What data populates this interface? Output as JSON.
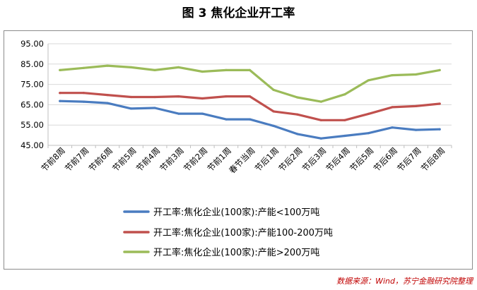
{
  "header": {
    "title": "图 3  焦化企业开工率"
  },
  "footer": {
    "source": "数据来源：Wind，苏宁金融研究院整理"
  },
  "chart_data": {
    "type": "line",
    "title": "图 3  焦化企业开工率",
    "categories": [
      "节前8周",
      "节前7周",
      "节前6周",
      "节前5周",
      "节前4周",
      "节前3周",
      "节前2周",
      "节前1周",
      "春节当周",
      "节后1周",
      "节后2周",
      "节后3周",
      "节后4周",
      "节后5周",
      "节后6周",
      "节后7周",
      "节后8周"
    ],
    "ylim": [
      45,
      95
    ],
    "yticks": [
      "45.00",
      "55.00",
      "65.00",
      "75.00",
      "85.00",
      "95.00"
    ],
    "grid": true,
    "legend_position": "bottom",
    "series": [
      {
        "name": "开工率:焦化企业(100家):产能<100万吨",
        "color": "#4a7cc0",
        "values": [
          66.8,
          66.5,
          65.8,
          63.1,
          63.4,
          60.6,
          60.6,
          57.8,
          57.8,
          54.6,
          50.6,
          48.4,
          49.7,
          51.0,
          53.8,
          52.6,
          52.9
        ]
      },
      {
        "name": "开工率:焦化企业(100家):产能100-200万吨",
        "color": "#c0504d",
        "values": [
          70.8,
          70.8,
          69.8,
          68.8,
          68.8,
          69.1,
          68.1,
          69.1,
          69.1,
          61.7,
          60.2,
          57.4,
          57.4,
          60.5,
          63.8,
          64.3,
          65.5
        ]
      },
      {
        "name": "开工率:焦化企业(100家):产能>200万吨",
        "color": "#9bbb59",
        "values": [
          82.0,
          83.1,
          84.2,
          83.4,
          82.0,
          83.4,
          81.3,
          82.0,
          82.0,
          72.3,
          68.6,
          66.5,
          70.1,
          77.0,
          79.5,
          79.9,
          82.0
        ]
      }
    ]
  }
}
